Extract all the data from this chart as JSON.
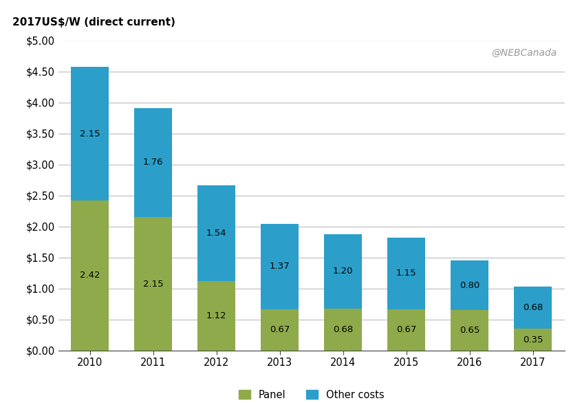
{
  "years": [
    "2010",
    "2011",
    "2012",
    "2013",
    "2014",
    "2015",
    "2016",
    "2017"
  ],
  "panel": [
    2.42,
    2.15,
    1.12,
    0.67,
    0.68,
    0.67,
    0.65,
    0.35
  ],
  "other_costs": [
    2.15,
    1.76,
    1.54,
    1.37,
    1.2,
    1.15,
    0.8,
    0.68
  ],
  "panel_color": "#8faa4b",
  "other_costs_color": "#2b9fc9",
  "ylabel": "2017US$/W (direct current)",
  "ylim": [
    0,
    5.0
  ],
  "yticks": [
    0.0,
    0.5,
    1.0,
    1.5,
    2.0,
    2.5,
    3.0,
    3.5,
    4.0,
    4.5,
    5.0
  ],
  "ytick_labels": [
    "$0.00",
    "$0.50",
    "$1.00",
    "$1.50",
    "$2.00",
    "$2.50",
    "$3.00",
    "$3.50",
    "$4.00",
    "$4.50",
    "$5.00"
  ],
  "legend_panel": "Panel",
  "legend_other": "Other costs",
  "watermark": "@NEBCanada",
  "background_color": "#ffffff",
  "bar_width": 0.6,
  "label_fontsize": 9.5,
  "axis_fontsize": 10.5,
  "watermark_fontsize": 10,
  "ylabel_fontsize": 11
}
